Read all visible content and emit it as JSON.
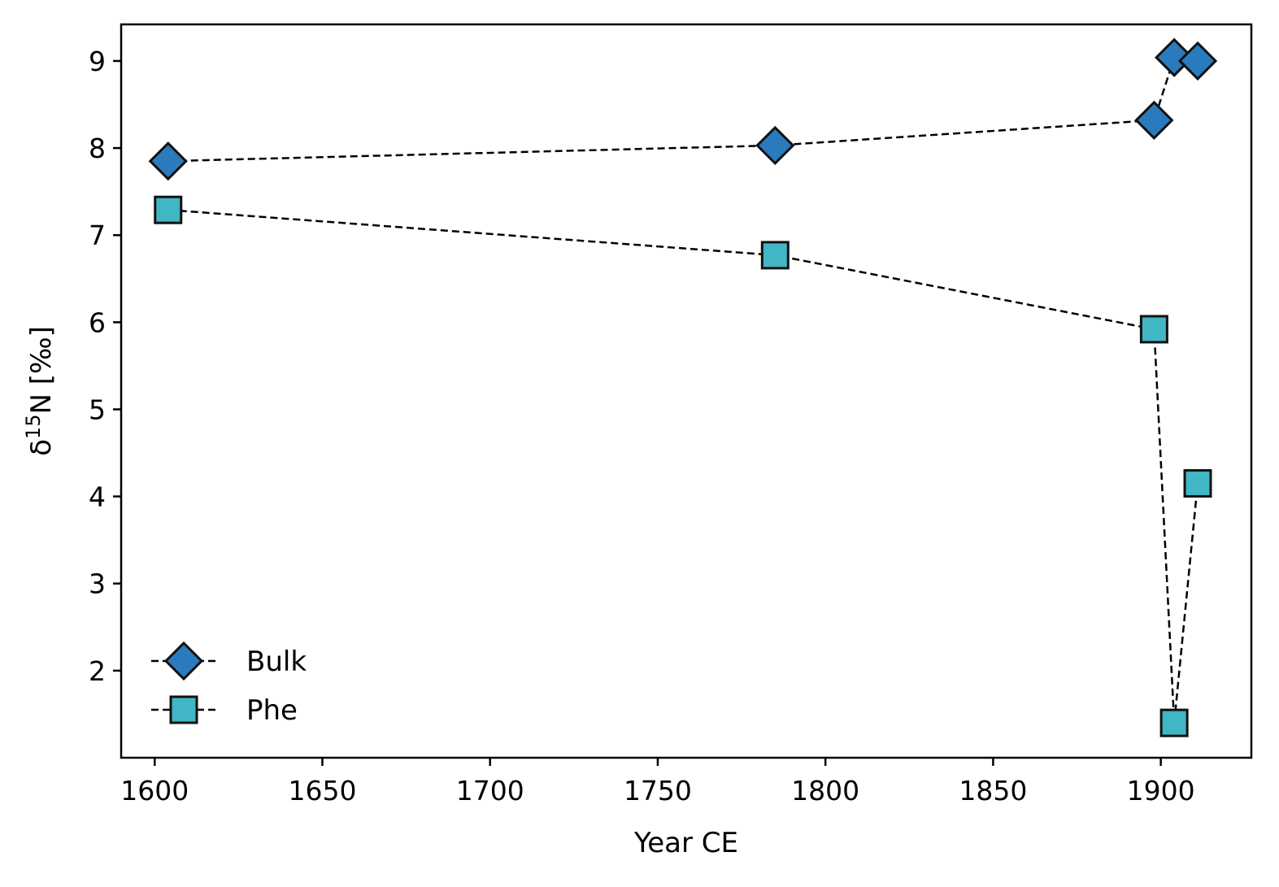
{
  "chart_data": {
    "type": "line",
    "title": "",
    "xlabel": "Year CE",
    "ylabel_base": "δ",
    "ylabel_sup": "15",
    "ylabel_rest": "N [‰]",
    "xlim": [
      1590,
      1927
    ],
    "ylim": [
      1.0,
      9.42
    ],
    "xticks": [
      1600,
      1650,
      1700,
      1750,
      1800,
      1850,
      1900
    ],
    "yticks": [
      2,
      3,
      4,
      5,
      6,
      7,
      8,
      9
    ],
    "grid": false,
    "legend_position": "lower-left",
    "series": [
      {
        "name": "Bulk",
        "marker": "diamond",
        "color": "#2a7bbd",
        "line_style": "dashed",
        "x": [
          1604,
          1785,
          1898,
          1904,
          1911
        ],
        "y": [
          7.85,
          8.03,
          8.32,
          9.04,
          9.0
        ]
      },
      {
        "name": "Phe",
        "marker": "square",
        "color": "#41b6c4",
        "line_style": "dashed",
        "x": [
          1604,
          1785,
          1898,
          1904,
          1911
        ],
        "y": [
          7.29,
          6.77,
          5.92,
          1.4,
          4.15
        ]
      }
    ]
  }
}
